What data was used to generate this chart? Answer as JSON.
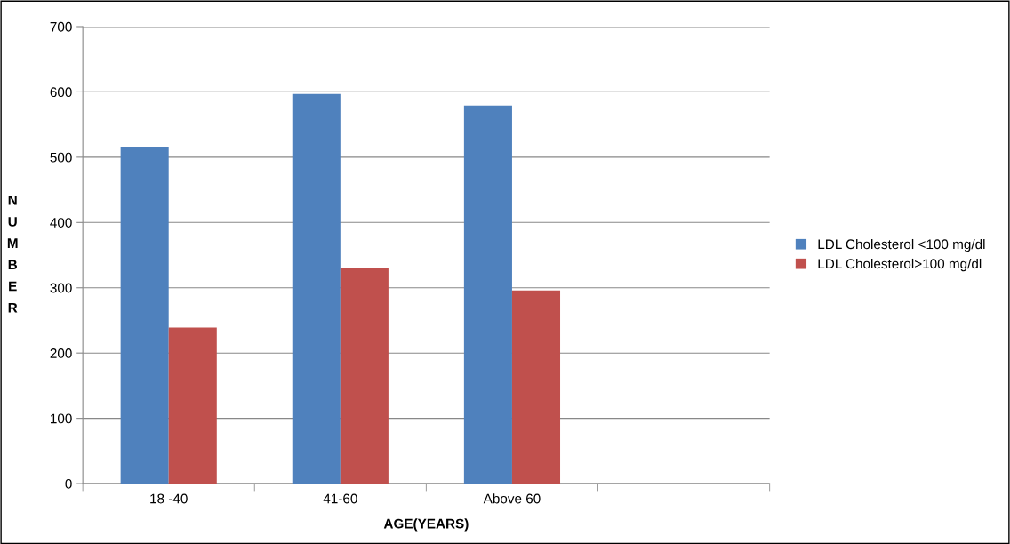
{
  "chart_data": {
    "type": "bar",
    "xlabel": "AGE(YEARS)",
    "ylabel": "NUMBER",
    "categories": [
      "18 -40",
      "41-60",
      "Above 60",
      null
    ],
    "series": [
      {
        "name": "LDL Cholesterol <100 mg/dl",
        "color": "#4f81bd",
        "values": [
          516,
          597,
          579,
          null
        ]
      },
      {
        "name": "LDL Cholesterol>100 mg/dl",
        "color": "#c0504d",
        "values": [
          239,
          331,
          296,
          null
        ]
      }
    ],
    "ylim": [
      0,
      700
    ],
    "yticks": [
      0,
      100,
      200,
      300,
      400,
      500,
      600,
      700
    ],
    "grid": "y",
    "legend": "right"
  }
}
